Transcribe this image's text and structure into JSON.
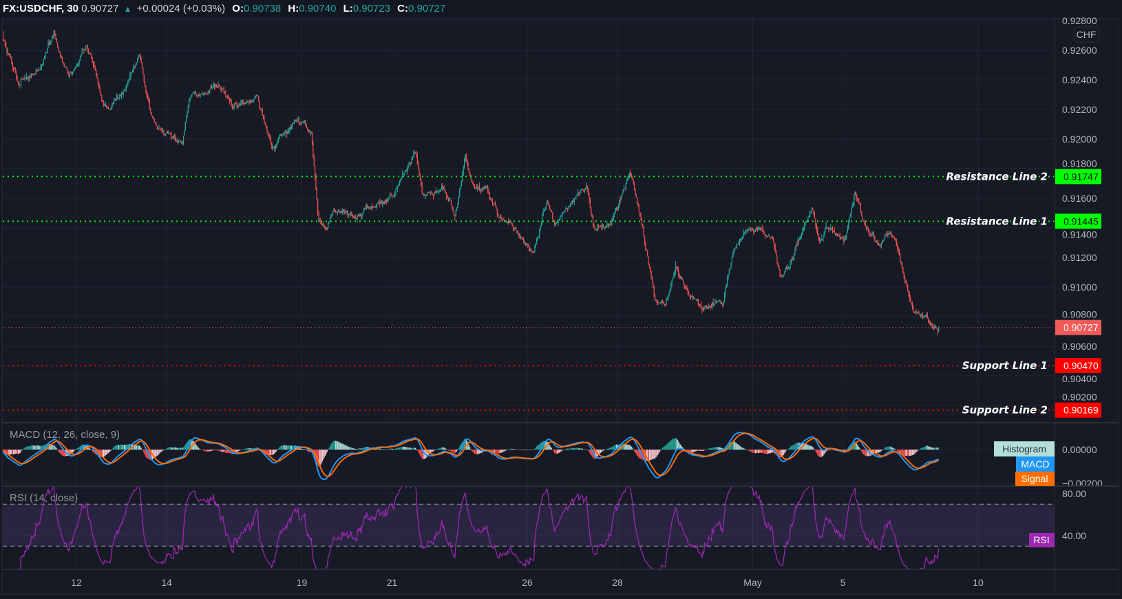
{
  "header": {
    "symbol": "FX:USDCHF, 30",
    "last": "0.90727",
    "direction_icon": "triangle-up-icon",
    "change": "+0.00024 (+0.03%)",
    "open_label": "O:",
    "open": "0.90738",
    "high_label": "H:",
    "high": "0.90740",
    "low_label": "L:",
    "low": "0.90723",
    "close_label": "C:",
    "close": "0.90727"
  },
  "price_axis": {
    "currency": "CHF",
    "ticks": [
      "0.92800",
      "0.92600",
      "0.92400",
      "0.92200",
      "0.92000",
      "0.91800",
      "0.91600",
      "0.91400",
      "0.91200",
      "0.91000",
      "0.90800",
      "0.90600",
      "0.90400",
      "0.90200"
    ]
  },
  "colors": {
    "background": "#161a25",
    "up": "#26a69a",
    "down": "#ef5350",
    "resistance": "#00ff00",
    "support": "#ff0000",
    "macd": "#2196f3",
    "signal": "#ff6d00",
    "histogram": "#b2dfdb",
    "rsi": "#9c27b0"
  },
  "chart_data": {
    "type": "candlestick",
    "interval": "30",
    "x_ticks": [
      {
        "label": "12",
        "date": "Apr 12 00:00"
      },
      {
        "label": "14",
        "date": "Apr 14 00:00"
      },
      {
        "label": "19",
        "date": "Apr 19 00:00"
      },
      {
        "label": "21",
        "date": "Apr 21 00:00"
      },
      {
        "label": "26",
        "date": "Apr 26 00:00"
      },
      {
        "label": "28",
        "date": "Apr 28 00:00"
      },
      {
        "label": "May",
        "date": "May 1 00:00"
      },
      {
        "label": "5",
        "date": "May 5 00:00"
      },
      {
        "label": "10",
        "date": "May 10 00:00"
      }
    ],
    "ylim": [
      0.9008,
      0.9282
    ],
    "last_price": 0.90727,
    "last_price_label": "0.90727",
    "close_path": [
      {
        "t": "Apr 8 07:00",
        "p": 0.9277
      },
      {
        "t": "Apr 8 13:00",
        "p": 0.92553
      },
      {
        "t": "Apr 8 17:00",
        "p": 0.92384
      },
      {
        "t": "Apr 8 22:30",
        "p": 0.92432
      },
      {
        "t": "Apr 9 06:10",
        "p": 0.92504
      },
      {
        "t": "Apr 9 11:55",
        "p": 0.92722
      },
      {
        "t": "Apr 9 15:40",
        "p": 0.92528
      },
      {
        "t": "Apr 9 21:25",
        "p": 0.92456
      },
      {
        "t": "Apr 12 05:00",
        "p": 0.92625
      },
      {
        "t": "Apr 12 08:50",
        "p": 0.9248
      },
      {
        "t": "Apr 12 14:30",
        "p": 0.92214
      },
      {
        "t": "Apr 12 20:15",
        "p": 0.92263
      },
      {
        "t": "Apr 13 02:00",
        "p": 0.92335
      },
      {
        "t": "Apr 13 09:35",
        "p": 0.92577
      },
      {
        "t": "Apr 13 13:25",
        "p": 0.92263
      },
      {
        "t": "Apr 13 19:10",
        "p": 0.9207
      },
      {
        "t": "Apr 14 02:45",
        "p": 0.91997
      },
      {
        "t": "Apr 14 08:25",
        "p": 0.91973
      },
      {
        "t": "Apr 14 12:15",
        "p": 0.92263
      },
      {
        "t": "Apr 14 21:50",
        "p": 0.92311
      },
      {
        "t": "Apr 15 03:30",
        "p": 0.9236
      },
      {
        "t": "Apr 15 09:10",
        "p": 0.92263
      },
      {
        "t": "Apr 15 16:50",
        "p": 0.92214
      },
      {
        "t": "Apr 16 00:25",
        "p": 0.92287
      },
      {
        "t": "Apr 16 08:05",
        "p": 0.91924
      },
      {
        "t": "Apr 16 15:40",
        "p": 0.92045
      },
      {
        "t": "Apr 19 01:10",
        "p": 0.92118
      },
      {
        "t": "Apr 19 05:00",
        "p": 0.92021
      },
      {
        "t": "Apr 19 08:50",
        "p": 0.9144
      },
      {
        "t": "Apr 19 12:40",
        "p": 0.91393
      },
      {
        "t": "Apr 19 18:20",
        "p": 0.91513
      },
      {
        "t": "Apr 20 05:45",
        "p": 0.91489
      },
      {
        "t": "Apr 20 13:20",
        "p": 0.91537
      },
      {
        "t": "Apr 21 00:50",
        "p": 0.9161
      },
      {
        "t": "Apr 21 06:30",
        "p": 0.91779
      },
      {
        "t": "Apr 21 12:15",
        "p": 0.91924
      },
      {
        "t": "Apr 21 16:05",
        "p": 0.91634
      },
      {
        "t": "Apr 22 03:30",
        "p": 0.91658
      },
      {
        "t": "Apr 22 09:10",
        "p": 0.91489
      },
      {
        "t": "Apr 22 14:55",
        "p": 0.91876
      },
      {
        "t": "Apr 22 18:40",
        "p": 0.91682
      },
      {
        "t": "Apr 23 02:20",
        "p": 0.91658
      },
      {
        "t": "Apr 23 10:00",
        "p": 0.91489
      },
      {
        "t": "Apr 23 17:30",
        "p": 0.91393
      },
      {
        "t": "Apr 26 03:05",
        "p": 0.91247
      },
      {
        "t": "Apr 26 10:40",
        "p": 0.91586
      },
      {
        "t": "Apr 26 14:30",
        "p": 0.9144
      },
      {
        "t": "Apr 27 00:05",
        "p": 0.91586
      },
      {
        "t": "Apr 27 07:40",
        "p": 0.91682
      },
      {
        "t": "Apr 27 11:30",
        "p": 0.91393
      },
      {
        "t": "Apr 27 21:00",
        "p": 0.9144
      },
      {
        "t": "Apr 28 06:30",
        "p": 0.91779
      },
      {
        "t": "Apr 28 12:15",
        "p": 0.91489
      },
      {
        "t": "Apr 28 16:00",
        "p": 0.91199
      },
      {
        "t": "Apr 28 19:50",
        "p": 0.90909
      },
      {
        "t": "Apr 29 01:30",
        "p": 0.90885
      },
      {
        "t": "Apr 29 07:15",
        "p": 0.91102
      },
      {
        "t": "Apr 29 13:00",
        "p": 0.90957
      },
      {
        "t": "Apr 29 22:30",
        "p": 0.9086
      },
      {
        "t": "Apr 30 08:00",
        "p": 0.90885
      },
      {
        "t": "Apr 30 13:45",
        "p": 0.91247
      },
      {
        "t": "Apr 30 19:25",
        "p": 0.91368
      },
      {
        "t": "May 3 03:05",
        "p": 0.91393
      },
      {
        "t": "May 3 10:40",
        "p": 0.91296
      },
      {
        "t": "May 3 14:30",
        "p": 0.91078
      },
      {
        "t": "May 3 20:10",
        "p": 0.91151
      },
      {
        "t": "May 4 03:50",
        "p": 0.9144
      },
      {
        "t": "May 4 07:40",
        "p": 0.91561
      },
      {
        "t": "May 4 11:25",
        "p": 0.91296
      },
      {
        "t": "May 4 17:10",
        "p": 0.91393
      },
      {
        "t": "May 5 00:45",
        "p": 0.91296
      },
      {
        "t": "May 5 06:30",
        "p": 0.91634
      },
      {
        "t": "May 5 12:10",
        "p": 0.91393
      },
      {
        "t": "May 5 19:50",
        "p": 0.91296
      },
      {
        "t": "May 6 01:30",
        "p": 0.91417
      },
      {
        "t": "May 6 07:15",
        "p": 0.91151
      },
      {
        "t": "May 6 13:00",
        "p": 0.9086
      },
      {
        "t": "May 6 20:35",
        "p": 0.90788
      },
      {
        "t": "May 7 03:20",
        "p": 0.90727
      }
    ],
    "levels": [
      {
        "label": "Resistance Line 2",
        "price": 0.91747,
        "price_label": "0.91747",
        "kind": "resistance"
      },
      {
        "label": "Resistance Line 1",
        "price": 0.91445,
        "price_label": "0.91445",
        "kind": "resistance"
      },
      {
        "label": "Support Line 1",
        "price": 0.9047,
        "price_label": "0.90470",
        "kind": "support"
      },
      {
        "label": "Support Line 2",
        "price": 0.90169,
        "price_label": "0.90169",
        "kind": "support"
      }
    ],
    "indicators": {
      "macd": {
        "title": "MACD (12, 26, close, 9)",
        "fast": 12,
        "slow": 26,
        "signal": 9,
        "ticks": [
          {
            "label": "0.00000",
            "value": 0
          },
          {
            "label": "−0.00200",
            "value": -0.002
          }
        ],
        "legend": {
          "histogram": "Histogram",
          "macd": "MACD",
          "signal": "Signal"
        }
      },
      "rsi": {
        "title": "RSI (14, close)",
        "length": 14,
        "bands": [
          70,
          30
        ],
        "ticks": [
          {
            "label": "80.00",
            "value": 80
          },
          {
            "label": "40.00",
            "value": 40
          }
        ],
        "legend": "RSI"
      }
    }
  }
}
